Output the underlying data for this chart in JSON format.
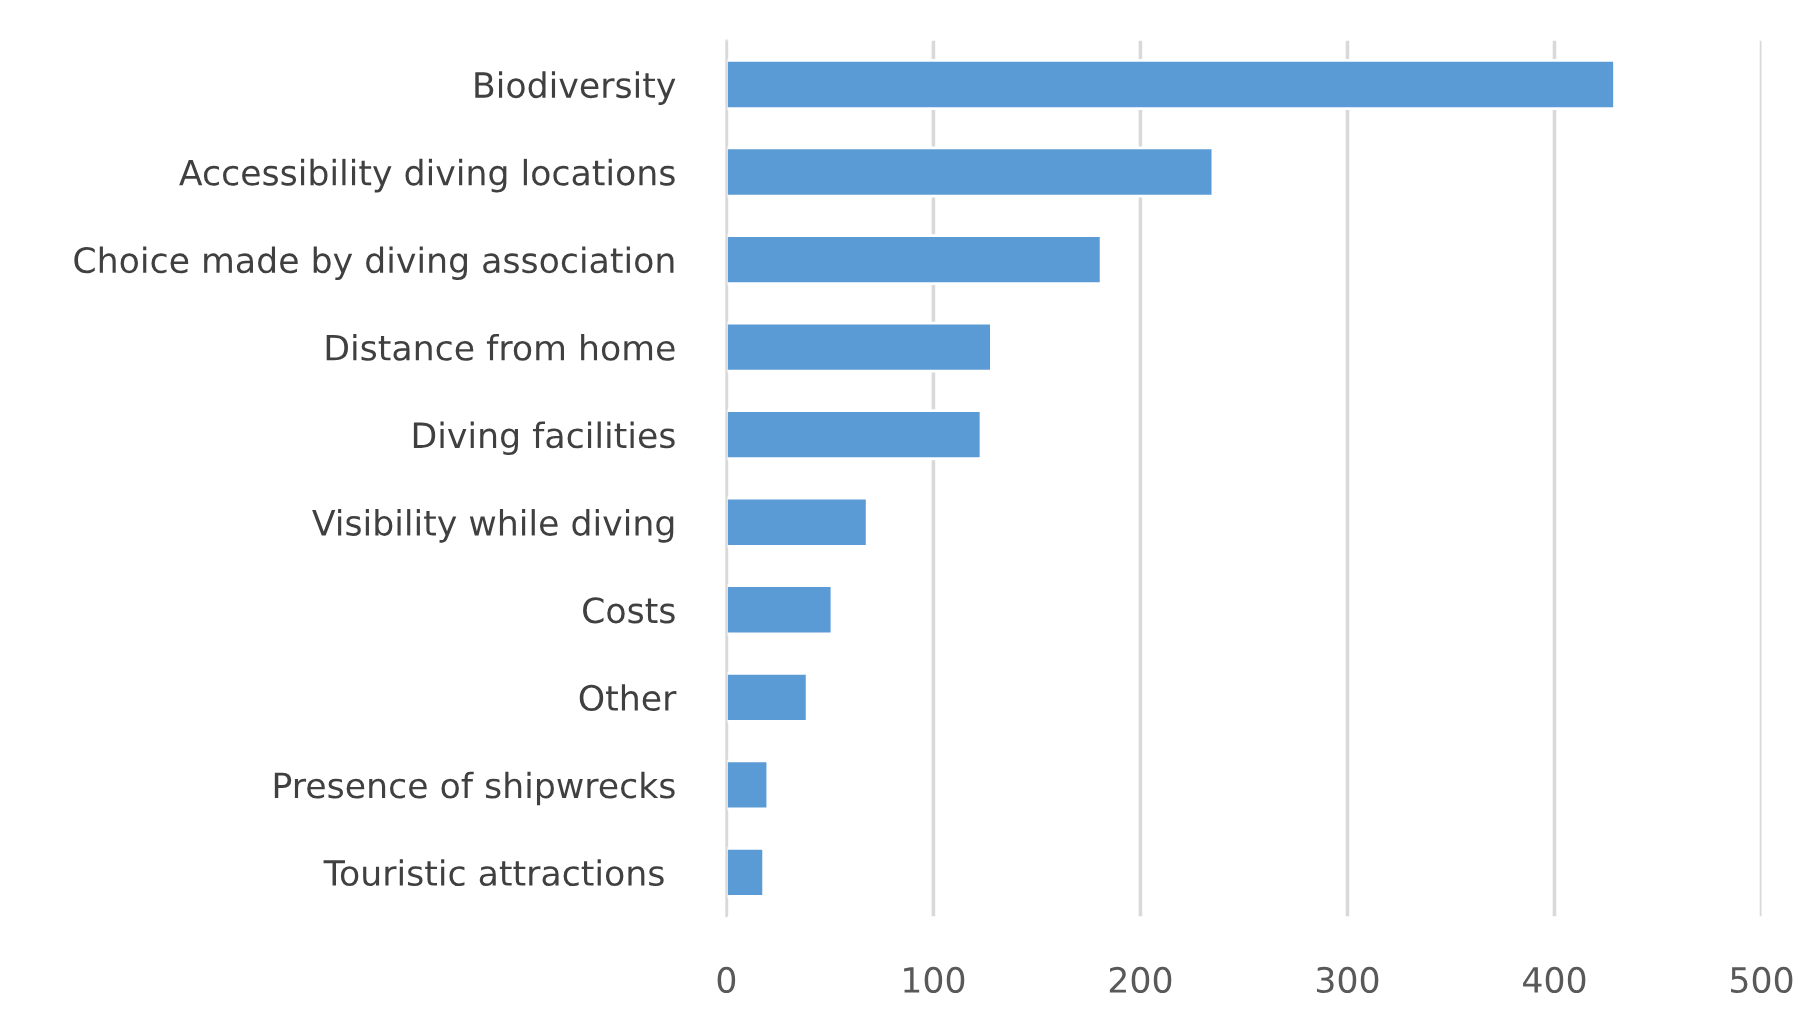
{
  "chart_data": {
    "type": "bar",
    "orientation": "horizontal",
    "categories": [
      "Biodiversity",
      "Accessibility diving locations",
      "Choice made by diving association",
      "Distance from home",
      "Diving facilities",
      "Visibility while diving",
      "Costs",
      "Other",
      "Presence of shipwrecks",
      "Touristic attractions "
    ],
    "values": [
      429,
      235,
      181,
      128,
      123,
      68,
      51,
      39,
      20,
      18
    ],
    "color": "#5b9bd5",
    "xlim": [
      0,
      500
    ],
    "xticks": [
      0,
      100,
      200,
      300,
      400,
      500
    ],
    "grid": "x",
    "legend": false
  }
}
